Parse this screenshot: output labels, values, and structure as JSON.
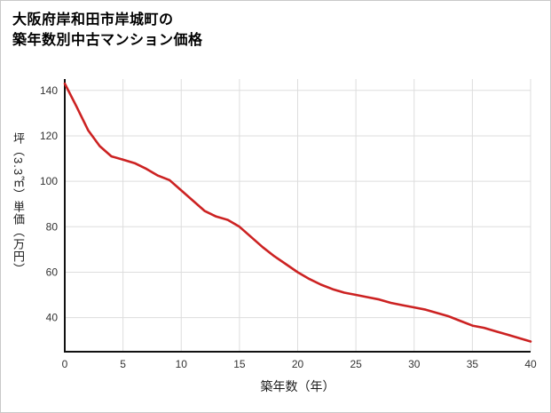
{
  "page": {
    "title_line1": "大阪府岸和田市岸城町の",
    "title_line2": "築年数別中古マンション価格"
  },
  "chart_data": {
    "type": "line",
    "title": "大阪府岸和田市岸城町の築年数別中古マンション価格",
    "xlabel": "築年数（年）",
    "ylabel": "坪（3.3㎡）単価（万円）",
    "x": [
      0,
      1,
      2,
      3,
      4,
      5,
      6,
      7,
      8,
      9,
      10,
      11,
      12,
      13,
      14,
      15,
      16,
      17,
      18,
      19,
      20,
      21,
      22,
      23,
      24,
      25,
      26,
      27,
      28,
      29,
      30,
      31,
      32,
      33,
      34,
      35,
      36,
      37,
      38,
      39,
      40
    ],
    "values": [
      143,
      133,
      122.5,
      115.5,
      111,
      109.5,
      108,
      105.5,
      102.5,
      100.5,
      96,
      91.5,
      87,
      84.5,
      83,
      80,
      75.5,
      71,
      67,
      63.5,
      60,
      57,
      54.5,
      52.5,
      51,
      50,
      49,
      48,
      46.5,
      45.5,
      44.5,
      43.5,
      42,
      40.5,
      38.5,
      36.5,
      35.5,
      34,
      32.5,
      31,
      29.5
    ],
    "xlim": [
      0,
      40
    ],
    "ylim": [
      25,
      145
    ],
    "x_ticks": [
      0,
      5,
      10,
      15,
      20,
      25,
      30,
      35,
      40
    ],
    "y_ticks": [
      40,
      60,
      80,
      100,
      120,
      140
    ],
    "grid": true,
    "legend": "none",
    "line_color": "#cc2222",
    "grid_color": "#dddddd",
    "axis_color": "#111111",
    "tick_label_color": "#333333"
  }
}
